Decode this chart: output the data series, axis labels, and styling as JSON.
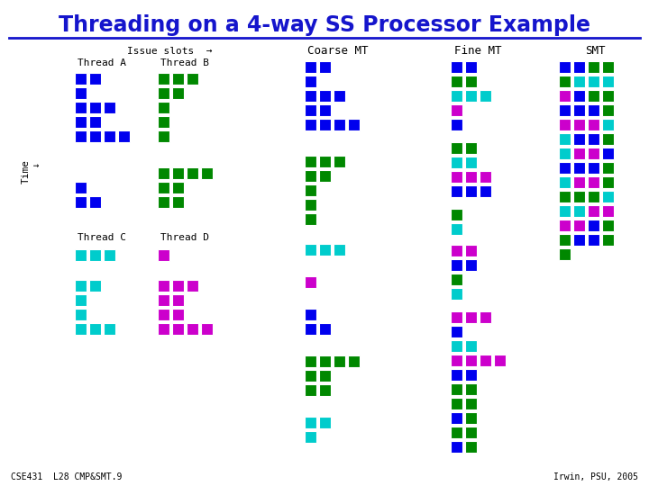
{
  "title": "Threading on a 4-way SS Processor Example",
  "title_color": "#1515CC",
  "bg_color": "#FFFFFF",
  "colors": {
    "A": "#0000EE",
    "B": "#008800",
    "C": "#00CCCC",
    "D": "#CC00CC"
  },
  "footer_left": "CSE431  L28 CMP&SMT.9",
  "footer_right": "Irwin, PSU, 2005",
  "coarse_mt_label": "Coarse MT",
  "fine_mt_label": "Fine MT",
  "smt_label": "SMT",
  "issue_label": "Issue slots  →",
  "time_label": "Time\n  ↓",
  "thread_a_label": "Thread A",
  "thread_b_label": "Thread B",
  "thread_c_label": "Thread C",
  "thread_d_label": "Thread D"
}
